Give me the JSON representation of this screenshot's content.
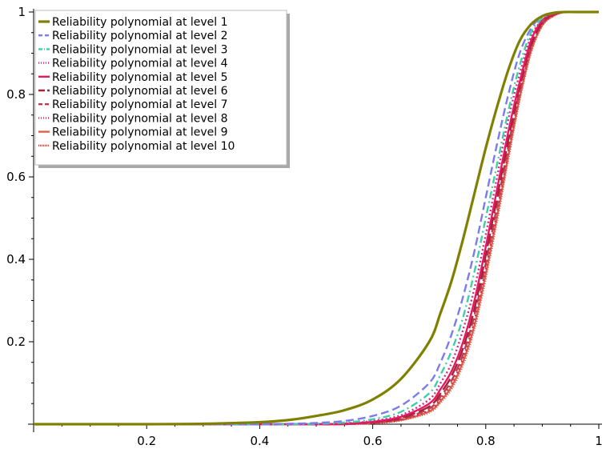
{
  "chart_data": {
    "type": "line",
    "title": "",
    "xlabel": "",
    "ylabel": "",
    "xlim": [
      0,
      1
    ],
    "ylim": [
      0,
      1
    ],
    "x_ticks": [
      0.2,
      0.4,
      0.6,
      0.8,
      1
    ],
    "x_tick_labels": [
      "0.2",
      "0.4",
      "0.6",
      "0.8",
      "1"
    ],
    "y_ticks": [
      0.2,
      0.4,
      0.6,
      0.8,
      1
    ],
    "y_tick_labels": [
      "0.2",
      "0.4",
      "0.6",
      "0.8",
      "1"
    ],
    "grid": false,
    "legend_position": "top-left",
    "x": [
      0,
      0.1,
      0.2,
      0.3,
      0.4,
      0.45,
      0.5,
      0.55,
      0.6,
      0.65,
      0.7,
      0.72,
      0.74,
      0.76,
      0.78,
      0.8,
      0.82,
      0.84,
      0.86,
      0.88,
      0.9,
      0.92,
      0.94,
      0.96,
      1
    ],
    "series": [
      {
        "name": "Reliability polynomial at level 1",
        "color": "#808000",
        "dash": "solid",
        "values": [
          0,
          0,
          0,
          0.001,
          0.005,
          0.01,
          0.02,
          0.034,
          0.06,
          0.11,
          0.2,
          0.27,
          0.35,
          0.45,
          0.56,
          0.67,
          0.77,
          0.86,
          0.93,
          0.97,
          0.99,
          0.998,
          1,
          1,
          1
        ]
      },
      {
        "name": "Reliability polynomial at level 2",
        "color": "#7b7bee",
        "dash": "dashed",
        "values": [
          0,
          0,
          0,
          0,
          0,
          0.001,
          0.003,
          0.008,
          0.02,
          0.045,
          0.1,
          0.15,
          0.22,
          0.31,
          0.42,
          0.55,
          0.68,
          0.8,
          0.9,
          0.96,
          0.99,
          0.998,
          1,
          1,
          1
        ]
      },
      {
        "name": "Reliability polynomial at level 3",
        "color": "#3dcfa6",
        "dash": "dashdot",
        "values": [
          0,
          0,
          0,
          0,
          0,
          0,
          0.001,
          0.004,
          0.012,
          0.03,
          0.075,
          0.12,
          0.18,
          0.26,
          0.37,
          0.5,
          0.63,
          0.76,
          0.87,
          0.95,
          0.985,
          0.997,
          1,
          1,
          1
        ]
      },
      {
        "name": "Reliability polynomial at level 4",
        "color": "#e0218a",
        "dash": "dotted",
        "values": [
          0,
          0,
          0,
          0,
          0,
          0,
          0,
          0.002,
          0.008,
          0.022,
          0.06,
          0.1,
          0.15,
          0.23,
          0.33,
          0.46,
          0.6,
          0.74,
          0.85,
          0.94,
          0.98,
          0.996,
          1,
          1,
          1
        ]
      },
      {
        "name": "Reliability polynomial at level 5",
        "color": "#e31a5a",
        "dash": "solid",
        "values": [
          0,
          0,
          0,
          0,
          0,
          0,
          0,
          0.001,
          0.006,
          0.018,
          0.05,
          0.085,
          0.13,
          0.2,
          0.3,
          0.43,
          0.57,
          0.71,
          0.83,
          0.93,
          0.98,
          0.995,
          1,
          1,
          1
        ]
      },
      {
        "name": "Reliability polynomial at level 6",
        "color": "#a0243c",
        "dash": "longdash",
        "values": [
          0,
          0,
          0,
          0,
          0,
          0,
          0,
          0.001,
          0.005,
          0.015,
          0.043,
          0.075,
          0.118,
          0.185,
          0.28,
          0.41,
          0.55,
          0.69,
          0.82,
          0.92,
          0.975,
          0.994,
          1,
          1,
          1
        ]
      },
      {
        "name": "Reliability polynomial at level 7",
        "color": "#c0394f",
        "dash": "dashed",
        "values": [
          0,
          0,
          0,
          0,
          0,
          0,
          0,
          0,
          0.004,
          0.013,
          0.038,
          0.067,
          0.107,
          0.17,
          0.265,
          0.39,
          0.53,
          0.675,
          0.81,
          0.915,
          0.972,
          0.993,
          1,
          1,
          1
        ]
      },
      {
        "name": "Reliability polynomial at level 8",
        "color": "#c9354f",
        "dash": "dotted",
        "values": [
          0,
          0,
          0,
          0,
          0,
          0,
          0,
          0,
          0.003,
          0.011,
          0.034,
          0.061,
          0.099,
          0.16,
          0.252,
          0.376,
          0.515,
          0.662,
          0.8,
          0.91,
          0.97,
          0.992,
          1,
          1,
          1
        ]
      },
      {
        "name": "Reliability polynomial at level 9",
        "color": "#e0604a",
        "dash": "solid",
        "values": [
          0,
          0,
          0,
          0,
          0,
          0,
          0,
          0,
          0.003,
          0.01,
          0.031,
          0.056,
          0.092,
          0.152,
          0.24,
          0.364,
          0.503,
          0.652,
          0.792,
          0.905,
          0.968,
          0.991,
          1,
          1,
          1
        ]
      },
      {
        "name": "Reliability polynomial at level 10",
        "color": "#c8504a",
        "dash": "finedot",
        "values": [
          0,
          0,
          0,
          0,
          0,
          0,
          0,
          0,
          0.002,
          0.009,
          0.028,
          0.052,
          0.086,
          0.144,
          0.23,
          0.353,
          0.492,
          0.643,
          0.785,
          0.9,
          0.966,
          0.99,
          1,
          1,
          1
        ]
      }
    ]
  }
}
